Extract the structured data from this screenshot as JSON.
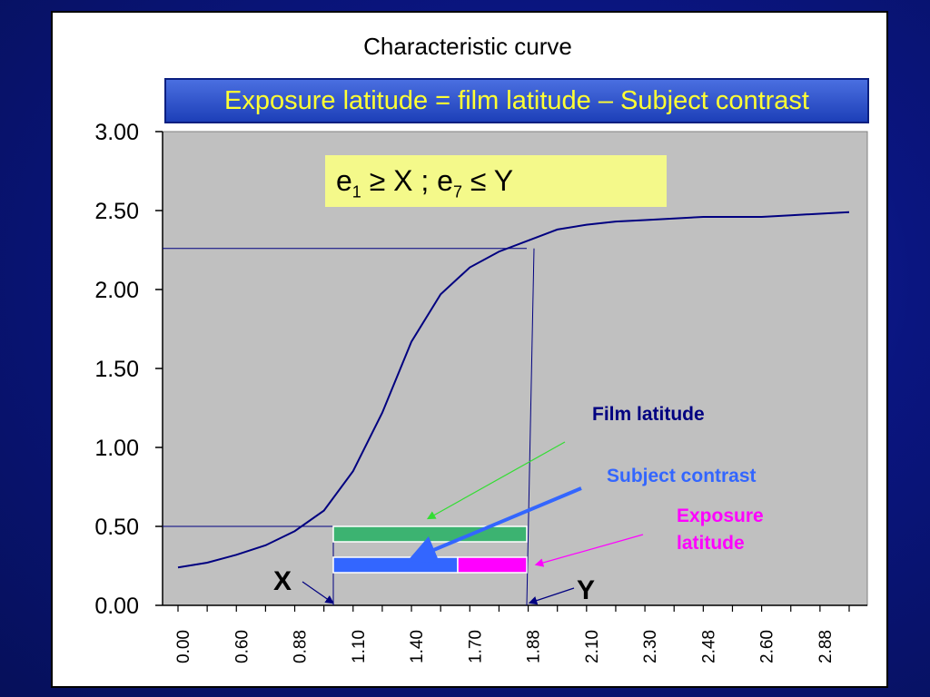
{
  "chart_data": {
    "type": "line",
    "title": "Characteristic curve",
    "subtitle": "Exposure latitude = film latitude – Subject contrast",
    "y_ticks": [
      "0.00",
      "0.50",
      "1.00",
      "1.50",
      "2.00",
      "2.50",
      "3.00"
    ],
    "x_tick_labels": [
      "0.00",
      "0.60",
      "0.88",
      "1.10",
      "1.40",
      "1.70",
      "1.88",
      "2.10",
      "2.30",
      "2.48",
      "2.60",
      "2.88"
    ],
    "ylim": [
      0,
      3
    ],
    "grid": false,
    "series": [
      {
        "values": [
          0.24,
          0.27,
          0.32,
          0.38,
          0.47,
          0.6,
          0.85,
          1.22,
          1.67,
          1.97,
          2.14,
          2.24,
          2.31,
          2.38,
          2.41,
          2.43,
          2.44,
          2.45,
          2.46,
          2.46,
          2.46,
          2.47,
          2.48,
          2.49
        ]
      }
    ],
    "markers": {
      "x_exposure": "1.10",
      "y_exposure": "1.88",
      "x_density": 0.5,
      "y_density": 2.26
    },
    "ranges": {
      "film_latitude": {
        "from": 1.1,
        "to": 1.88
      },
      "subject_contrast": {
        "from": 1.1,
        "to": 1.6
      },
      "exposure_latitude": {
        "from": 1.6,
        "to": 1.88
      }
    }
  },
  "condition": {
    "e": "e",
    "sub1": "1",
    "mid": " ≥ X ; e",
    "sub7": "7",
    "end": " ≤ Y"
  },
  "labels": {
    "film_latitude": "Film latitude",
    "subject_contrast": "Subject contrast",
    "exposure_line1": "Exposure",
    "exposure_line2": "latitude",
    "x": "X",
    "y": "Y"
  },
  "colors": {
    "plot_bg": "#c0c0c0",
    "curve": "#000080",
    "film_bar": "#3cb371",
    "subject_bar": "#3366ff",
    "exposure_bar": "#ff00ff",
    "film_label": "#000080",
    "subject_label": "#3366ff",
    "exposure_label": "#ff00ff"
  }
}
